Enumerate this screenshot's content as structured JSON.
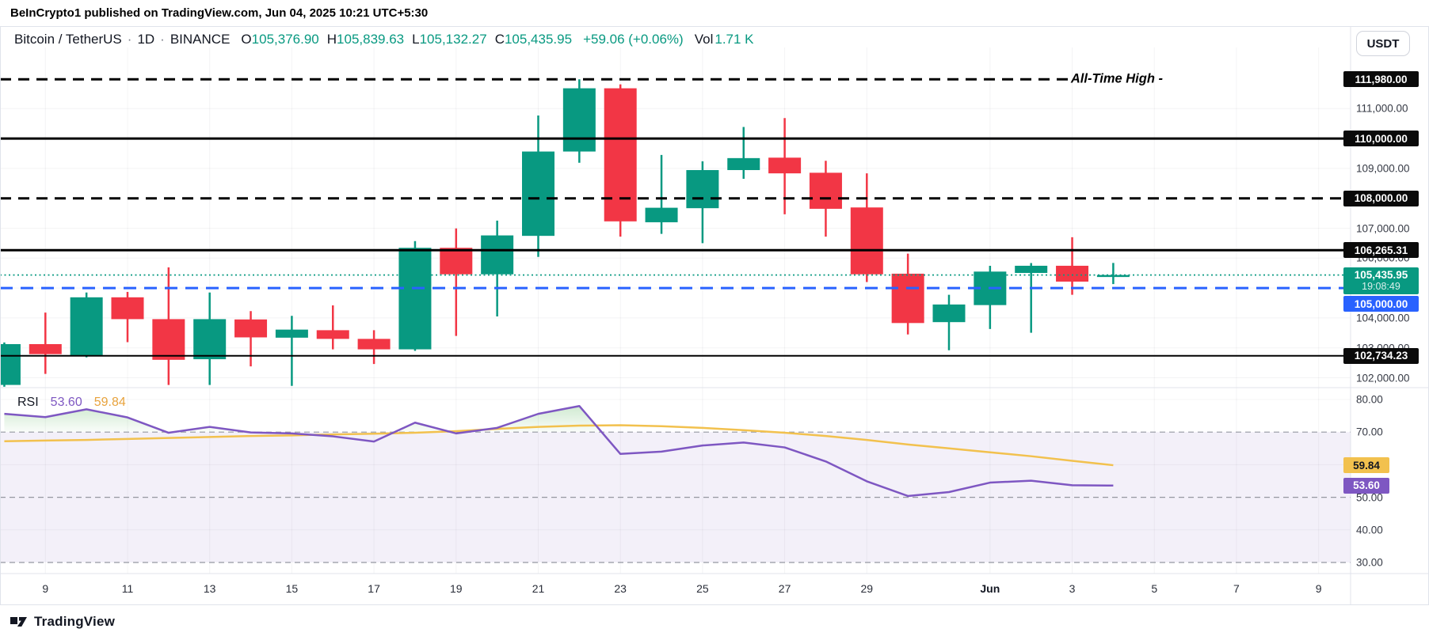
{
  "header": {
    "published_line": "BeInCrypto1 published on TradingView.com, Jun 04, 2025 10:21 UTC+5:30"
  },
  "toolbar": {
    "symbol": "Bitcoin / TetherUS",
    "separator": "·",
    "interval": "1D",
    "exchange": "BINANCE",
    "ohlc": [
      {
        "label": "O",
        "value": "105,376.90"
      },
      {
        "label": "H",
        "value": "105,839.63"
      },
      {
        "label": "L",
        "value": "105,132.27"
      },
      {
        "label": "C",
        "value": "105,435.95"
      }
    ],
    "change": "+59.06 (+0.06%)",
    "vol_label": "Vol",
    "vol_value": "1.71 K",
    "currency_button": "USDT"
  },
  "colors": {
    "up": "#089981",
    "down": "#F23645",
    "blue": "#2962FF",
    "purple": "#7E57C2",
    "yellow": "#F2C14E",
    "badge_dark": "#0a0a0a",
    "grid": "rgba(42,46,57,0.05)",
    "band": "rgba(126,87,194,0.09)",
    "level_dash_gray": "#9598a1",
    "text": "#131722"
  },
  "price_axis": {
    "labels": [
      {
        "text": "111,000.00",
        "price": 111000
      },
      {
        "text": "109,000.00",
        "price": 109000
      },
      {
        "text": "107,000.00",
        "price": 107000
      },
      {
        "text": "106,000.00",
        "price": 106000
      },
      {
        "text": "104,000.00",
        "price": 104000
      },
      {
        "text": "103,000.00",
        "price": 103000
      },
      {
        "text": "102,000.00",
        "price": 102000
      }
    ],
    "badges": [
      {
        "text": "111,980.00",
        "price": 111980,
        "type": "dark"
      },
      {
        "text": "110,000.00",
        "price": 110000,
        "type": "dark"
      },
      {
        "text": "108,000.00",
        "price": 108000,
        "type": "dark"
      },
      {
        "text": "106,265.31",
        "price": 106265.31,
        "type": "dark"
      },
      {
        "text": "105,435.95",
        "sub": "19:08:49",
        "price": 105435.95,
        "type": "up"
      },
      {
        "text": "105,000.00",
        "price": 105000,
        "type": "blue"
      },
      {
        "text": "102,734.23",
        "price": 102734.23,
        "type": "dark"
      }
    ]
  },
  "rsi_axis": {
    "labels": [
      {
        "text": "80.00",
        "value": 80
      },
      {
        "text": "70.00",
        "value": 70
      },
      {
        "text": "50.00",
        "value": 50
      },
      {
        "text": "40.00",
        "value": 40
      },
      {
        "text": "30.00",
        "value": 30
      }
    ],
    "badges": [
      {
        "text": "59.84",
        "value": 59.84,
        "type": "yellow"
      },
      {
        "text": "53.60",
        "value": 53.6,
        "type": "purple"
      }
    ]
  },
  "rsi_legend": {
    "title": "RSI",
    "value": "53.60",
    "ma_value": "59.84"
  },
  "footer": {
    "brand": "TradingView"
  },
  "chart_data": {
    "type": "candlestick+rsi",
    "title": "Bitcoin / TetherUS 1D BINANCE",
    "price_visible_range": [
      101670,
      113050
    ],
    "rsi_visible_range": [
      26.6,
      83.6
    ],
    "dates": [
      "May 8",
      "May 9",
      "May 10",
      "May 11",
      "May 12",
      "May 13",
      "May 14",
      "May 15",
      "May 16",
      "May 17",
      "May 18",
      "May 19",
      "May 20",
      "May 21",
      "May 22",
      "May 23",
      "May 24",
      "May 25",
      "May 26",
      "May 27",
      "May 28",
      "May 29",
      "May 30",
      "May 31",
      "Jun 1",
      "Jun 2",
      "Jun 3",
      "Jun 4"
    ],
    "candles": [
      [
        101760,
        103180,
        101700,
        103125
      ],
      [
        103125,
        104180,
        102130,
        102790
      ],
      [
        102750,
        104850,
        102680,
        104690
      ],
      [
        104690,
        104870,
        103190,
        103960
      ],
      [
        103960,
        105690,
        101760,
        102600
      ],
      [
        102620,
        104850,
        101760,
        103960
      ],
      [
        103950,
        104230,
        102380,
        103350
      ],
      [
        103340,
        104070,
        101730,
        103610
      ],
      [
        103590,
        104420,
        102950,
        103300
      ],
      [
        103300,
        103590,
        102460,
        102950
      ],
      [
        102950,
        106570,
        102900,
        106345
      ],
      [
        106345,
        106995,
        103400,
        105460
      ],
      [
        105460,
        107255,
        104050,
        106760
      ],
      [
        106745,
        110770,
        106040,
        109565
      ],
      [
        109565,
        111980,
        109190,
        111680
      ],
      [
        111680,
        111810,
        106720,
        107230
      ],
      [
        107200,
        109450,
        106810,
        107685
      ],
      [
        107670,
        109240,
        106500,
        108945
      ],
      [
        108945,
        110385,
        108655,
        109345
      ],
      [
        109360,
        110685,
        107465,
        108835
      ],
      [
        108855,
        109255,
        106720,
        107650
      ],
      [
        107695,
        108835,
        105200,
        105460
      ],
      [
        105480,
        106150,
        103450,
        103830
      ],
      [
        103860,
        104775,
        102920,
        104450
      ],
      [
        104430,
        105745,
        103630,
        105550
      ],
      [
        105505,
        105835,
        103505,
        105745
      ],
      [
        105745,
        106700,
        104775,
        105215
      ],
      [
        105376.9,
        105839.63,
        105132.27,
        105435.95
      ]
    ],
    "levels": [
      {
        "price": 111980,
        "label": "All-Time High -",
        "style": "dashed-black"
      },
      {
        "price": 110000,
        "style": "solid-black"
      },
      {
        "price": 108000,
        "style": "dashed-black"
      },
      {
        "price": 106265.31,
        "style": "solid-black"
      },
      {
        "price": 105435.95,
        "style": "dotted-teal",
        "role": "last-price"
      },
      {
        "price": 105000,
        "style": "dashed-blue"
      },
      {
        "price": 102734.23,
        "style": "solid-black-thin"
      }
    ],
    "rsi": {
      "upper_band": 70,
      "middle_band": 50,
      "lower_band": 30,
      "values": [
        75.6,
        74.6,
        77.0,
        74.5,
        69.8,
        71.6,
        69.9,
        69.6,
        68.7,
        67.1,
        72.9,
        69.6,
        71.3,
        75.6,
        78.0,
        63.3,
        64.0,
        65.9,
        66.8,
        65.3,
        61.0,
        54.9,
        50.4,
        51.6,
        54.5,
        55.1,
        53.7,
        53.6
      ],
      "ma": [
        67.2,
        67.4,
        67.6,
        67.9,
        68.2,
        68.5,
        68.8,
        69.0,
        69.3,
        69.5,
        69.8,
        70.3,
        71.0,
        71.6,
        72.0,
        72.1,
        71.8,
        71.3,
        70.6,
        69.8,
        68.8,
        67.6,
        66.2,
        65.0,
        63.8,
        62.6,
        61.2,
        59.84
      ]
    },
    "time_labels": [
      {
        "text": "9",
        "i": 1
      },
      {
        "text": "11",
        "i": 3
      },
      {
        "text": "13",
        "i": 5
      },
      {
        "text": "15",
        "i": 7
      },
      {
        "text": "17",
        "i": 9
      },
      {
        "text": "19",
        "i": 11
      },
      {
        "text": "21",
        "i": 13
      },
      {
        "text": "23",
        "i": 15
      },
      {
        "text": "25",
        "i": 17
      },
      {
        "text": "27",
        "i": 19
      },
      {
        "text": "29",
        "i": 21
      },
      {
        "text": "Jun",
        "i": 24,
        "bold": true
      },
      {
        "text": "3",
        "i": 26
      },
      {
        "text": "5",
        "i": 28
      },
      {
        "text": "7",
        "i": 30
      },
      {
        "text": "9",
        "i": 32
      }
    ]
  }
}
